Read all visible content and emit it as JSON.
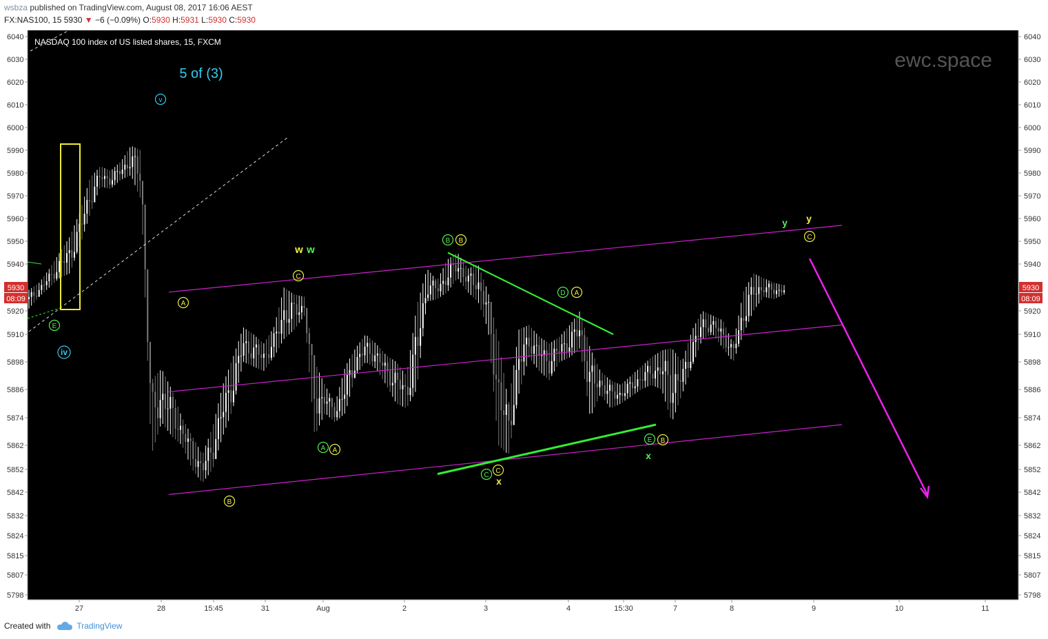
{
  "header": {
    "author": "wsbza",
    "published": "published on TradingView.com, August 08, 2017 16:06 AEST",
    "symbol": "FX:NAS100, 15",
    "last": "5930",
    "change": "−6 (−0.09%)",
    "o_label": "O:",
    "o_val": "5930",
    "h_label": "H:",
    "h_val": "5931",
    "l_label": "L:",
    "l_val": "5930",
    "c_label": "C:",
    "c_val": "5930"
  },
  "footer": {
    "created_with": "Created with",
    "brand": "TradingView"
  },
  "chart_data": {
    "type": "candlestick",
    "title": "NASDAQ 100 index of US listed shares, 15, FXCM",
    "watermark": "ewc.space",
    "y_ticks": [
      6040,
      6030,
      6020,
      6010,
      6000,
      5990,
      5980,
      5970,
      5960,
      5950,
      5940,
      5930,
      5920,
      5910,
      5898,
      5886,
      5874,
      5862,
      5852,
      5842,
      5832,
      5824,
      5815,
      5807,
      5798
    ],
    "x_ticks": [
      "27",
      "28",
      "15:45",
      "31",
      "Aug",
      "2",
      "3",
      "4",
      "15:30",
      "7",
      "8",
      "9",
      "10",
      "11"
    ],
    "price_label": {
      "price": "5930",
      "timer": "08:09"
    },
    "colors": {
      "background": "#000000",
      "up": "#ffffff",
      "down": "#7a7a7a",
      "channel": "#cc22cc",
      "green_line": "#33ee33",
      "box": "#eeee33",
      "cyan": "#33ccee",
      "magenta_arrow": "#ee22ee"
    },
    "price_path": [
      [
        5929,
        5921
      ],
      [
        5932,
        5926
      ],
      [
        5938,
        5930
      ],
      [
        5945,
        5934
      ],
      [
        5952,
        5936
      ],
      [
        5963,
        5948
      ],
      [
        5978,
        5962
      ],
      [
        5983,
        5974
      ],
      [
        5981,
        5973
      ],
      [
        5985,
        5977
      ],
      [
        5992,
        5979
      ],
      [
        5990,
        5968
      ],
      [
        5890,
        5858
      ],
      [
        5895,
        5872
      ],
      [
        5886,
        5866
      ],
      [
        5874,
        5862
      ],
      [
        5866,
        5852
      ],
      [
        5858,
        5846
      ],
      [
        5870,
        5852
      ],
      [
        5888,
        5866
      ],
      [
        5900,
        5878
      ],
      [
        5913,
        5898
      ],
      [
        5910,
        5896
      ],
      [
        5906,
        5894
      ],
      [
        5913,
        5900
      ],
      [
        5930,
        5908
      ],
      [
        5927,
        5912
      ],
      [
        5926,
        5918
      ],
      [
        5898,
        5866
      ],
      [
        5888,
        5876
      ],
      [
        5880,
        5872
      ],
      [
        5896,
        5876
      ],
      [
        5904,
        5892
      ],
      [
        5910,
        5898
      ],
      [
        5906,
        5895
      ],
      [
        5901,
        5888
      ],
      [
        5898,
        5880
      ],
      [
        5892,
        5878
      ],
      [
        5922,
        5886
      ],
      [
        5938,
        5924
      ],
      [
        5933,
        5925
      ],
      [
        5942,
        5928
      ],
      [
        5945,
        5934
      ],
      [
        5938,
        5928
      ],
      [
        5940,
        5924
      ],
      [
        5928,
        5912
      ],
      [
        5908,
        5862
      ],
      [
        5880,
        5858
      ],
      [
        5912,
        5884
      ],
      [
        5914,
        5900
      ],
      [
        5909,
        5894
      ],
      [
        5906,
        5890
      ],
      [
        5909,
        5898
      ],
      [
        5914,
        5900
      ],
      [
        5920,
        5904
      ],
      [
        5904,
        5874
      ],
      [
        5894,
        5884
      ],
      [
        5890,
        5878
      ],
      [
        5888,
        5880
      ],
      [
        5892,
        5883
      ],
      [
        5896,
        5886
      ],
      [
        5900,
        5888
      ],
      [
        5903,
        5886
      ],
      [
        5904,
        5872
      ],
      [
        5898,
        5884
      ],
      [
        5912,
        5896
      ],
      [
        5920,
        5908
      ],
      [
        5918,
        5910
      ],
      [
        5916,
        5904
      ],
      [
        5906,
        5898
      ],
      [
        5928,
        5910
      ],
      [
        5936,
        5920
      ],
      [
        5934,
        5926
      ],
      [
        5932,
        5925
      ],
      [
        5931,
        5927
      ]
    ],
    "lines": [
      {
        "name": "channel-upper",
        "from": [
          "Jul 28",
          "5928"
        ],
        "to": [
          "Aug 9",
          "5957"
        ]
      },
      {
        "name": "channel-middle",
        "from": [
          "Jul 28",
          "5885"
        ],
        "to": [
          "Aug 9",
          "5914"
        ]
      },
      {
        "name": "channel-lower",
        "from": [
          "Jul 28",
          "5841"
        ],
        "to": [
          "Aug 9",
          "5871"
        ]
      },
      {
        "name": "green-upper",
        "from": [
          "Aug 2",
          "5945"
        ],
        "to": [
          "Aug 4",
          "5910"
        ]
      },
      {
        "name": "green-lower",
        "from": [
          "Aug 2",
          "5850"
        ],
        "to": [
          "Aug 4",
          "5871"
        ]
      }
    ],
    "annotations": [
      {
        "text": "5 of (3)",
        "color": "cyan"
      },
      {
        "text": "v",
        "style": "circle",
        "color": "cyan"
      },
      {
        "text": "iv",
        "style": "circle",
        "color": "cyan"
      },
      {
        "text": "E",
        "style": "circle",
        "color": "green"
      },
      {
        "text": "A",
        "style": "circle",
        "color": "yellow"
      },
      {
        "text": "B",
        "style": "circle",
        "color": "yellow"
      },
      {
        "text": "C",
        "style": "circle",
        "color": "yellow"
      },
      {
        "text": "w",
        "color": "yellow"
      },
      {
        "text": "w",
        "color": "green"
      },
      {
        "text": "A",
        "style": "circle",
        "color": "green"
      },
      {
        "text": "A",
        "style": "circle",
        "color": "yellow"
      },
      {
        "text": "B",
        "style": "circle",
        "color": "green"
      },
      {
        "text": "B",
        "style": "circle",
        "color": "yellow"
      },
      {
        "text": "C",
        "style": "circle",
        "color": "green"
      },
      {
        "text": "C",
        "style": "circle",
        "color": "yellow"
      },
      {
        "text": "x",
        "color": "yellow"
      },
      {
        "text": "D",
        "style": "circle",
        "color": "green"
      },
      {
        "text": "A",
        "style": "circle",
        "color": "yellow"
      },
      {
        "text": "E",
        "style": "circle",
        "color": "green"
      },
      {
        "text": "B",
        "style": "circle",
        "color": "yellow"
      },
      {
        "text": "x",
        "color": "green"
      },
      {
        "text": "y",
        "color": "green"
      },
      {
        "text": "y",
        "color": "yellow"
      },
      {
        "text": "C",
        "style": "circle",
        "color": "yellow"
      }
    ]
  }
}
